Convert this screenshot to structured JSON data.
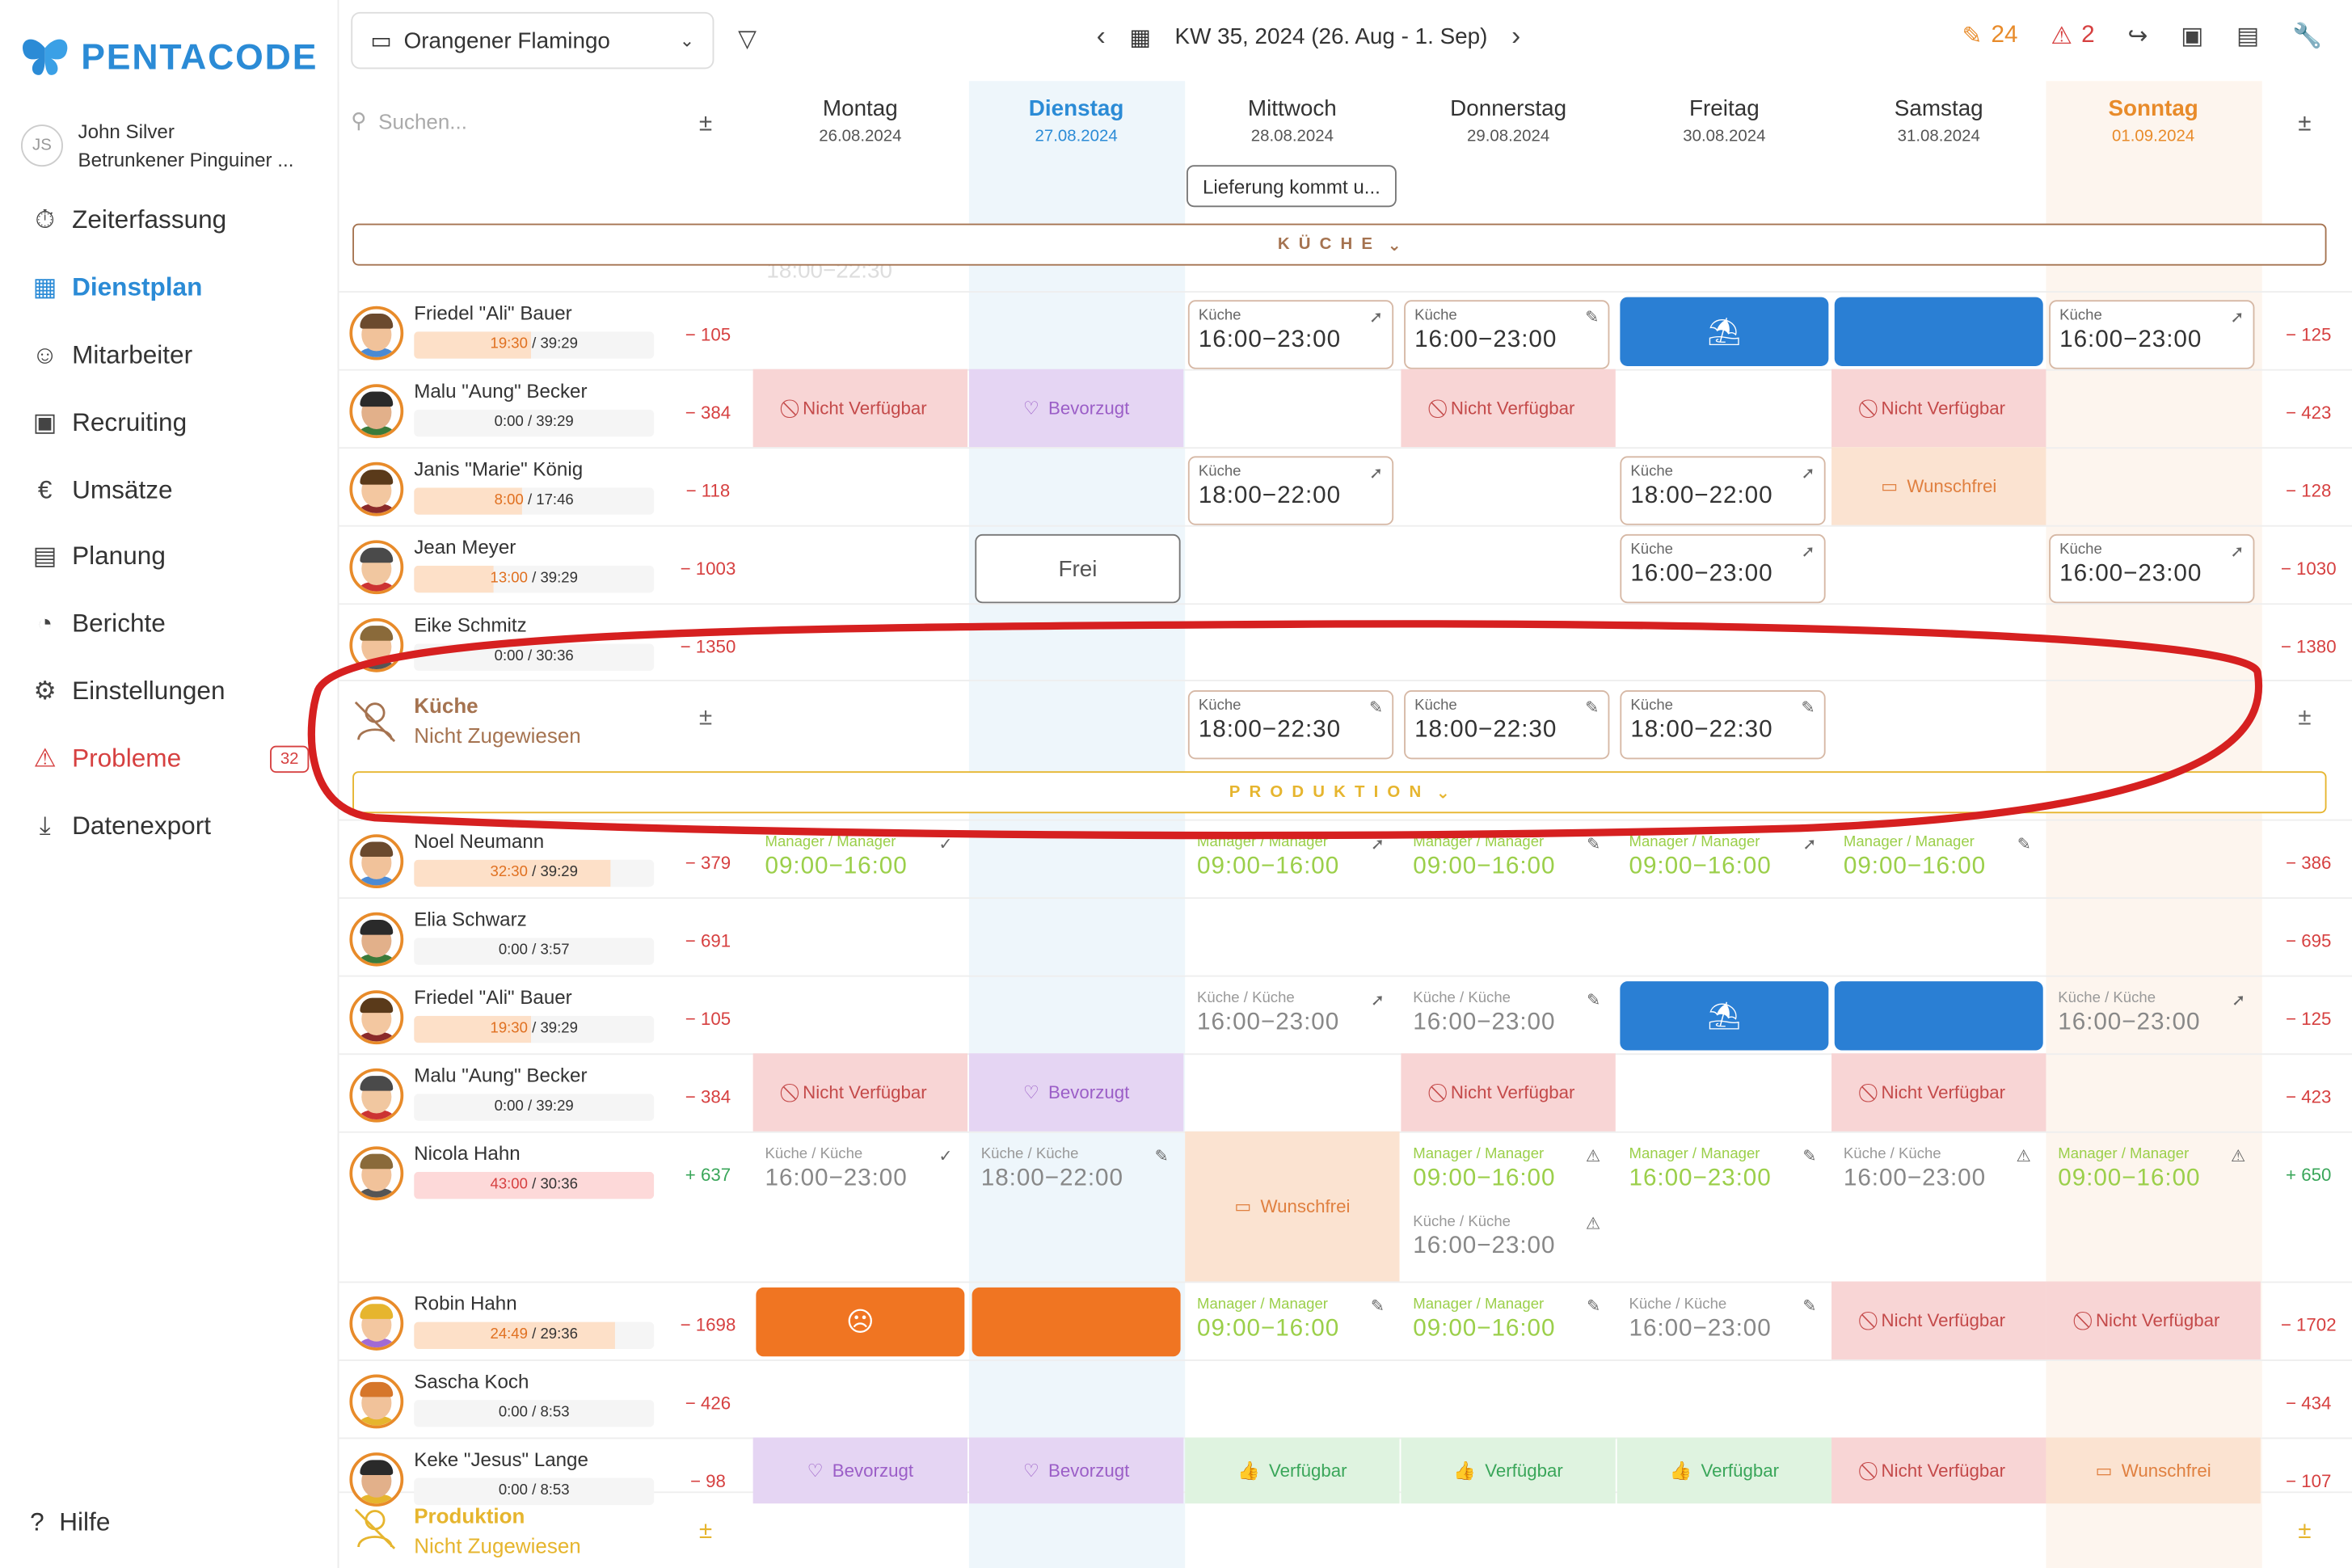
{
  "brand": {
    "name": "PENTACODE"
  },
  "user": {
    "initials": "JS",
    "name": "John Silver",
    "subtitle": "Betrunkener Pinguiner ..."
  },
  "nav": [
    {
      "label": "Zeiterfassung",
      "icon": "stopwatch-icon"
    },
    {
      "label": "Dienstplan",
      "icon": "table-icon",
      "active": true
    },
    {
      "label": "Mitarbeiter",
      "icon": "people-icon"
    },
    {
      "label": "Recruiting",
      "icon": "id-card-icon"
    },
    {
      "label": "Umsätze",
      "icon": "euro-icon"
    },
    {
      "label": "Planung",
      "icon": "calendar-icon"
    },
    {
      "label": "Berichte",
      "icon": "pie-chart-icon"
    },
    {
      "label": "Einstellungen",
      "icon": "gear-icon"
    },
    {
      "label": "Probleme",
      "icon": "warning-icon",
      "badge": "32"
    },
    {
      "label": "Datenexport",
      "icon": "download-icon"
    }
  ],
  "help": "Hilfe",
  "topbar": {
    "team": "Orangener Flamingo",
    "week": "KW 35, 2024 (26. Aug - 1. Sep)",
    "edits": "24",
    "warnings": "2"
  },
  "search_placeholder": "Suchen...",
  "days": [
    {
      "name": "Montag",
      "date": "26.08.2024"
    },
    {
      "name": "Dienstag",
      "date": "27.08.2024",
      "today": true
    },
    {
      "name": "Mittwoch",
      "date": "28.08.2024"
    },
    {
      "name": "Donnerstag",
      "date": "29.08.2024"
    },
    {
      "name": "Freitag",
      "date": "30.08.2024"
    },
    {
      "name": "Samstag",
      "date": "31.08.2024"
    },
    {
      "name": "Sonntag",
      "date": "01.09.2024",
      "sunday": true
    }
  ],
  "note": "Lieferung kommt u...",
  "sections": {
    "kueche": "KÜCHE",
    "produktion": "PRODUKTION"
  },
  "kueche_rows": [
    {
      "name": "Friedel \"Ali\" Bauer",
      "hours": "19:30",
      "target": "39:29",
      "left": "− 105",
      "right": "− 125",
      "fill": 0.49
    },
    {
      "name": "Malu \"Aung\" Becker",
      "hours": "0:00",
      "target": "39:29",
      "left": "− 384",
      "right": "− 423",
      "fill": 0
    },
    {
      "name": "Janis \"Marie\" König",
      "hours": "8:00",
      "target": "17:46",
      "left": "− 118",
      "right": "− 128",
      "fill": 0.45
    },
    {
      "name": "Jean Meyer",
      "hours": "13:00",
      "target": "39:29",
      "left": "− 1003",
      "right": "− 1030",
      "fill": 0.33
    },
    {
      "name": "Eike Schmitz",
      "hours": "0:00",
      "target": "30:36",
      "left": "− 1350",
      "right": "− 1380",
      "fill": 0
    }
  ],
  "unassigned_kueche": {
    "title": "Küche",
    "sub": "Nicht Zugewiesen"
  },
  "prod_rows": [
    {
      "name": "Noel Neumann",
      "hours": "32:30",
      "target": "39:29",
      "left": "− 379",
      "right": "− 386",
      "fill": 0.82
    },
    {
      "name": "Elia Schwarz",
      "hours": "0:00",
      "target": "3:57",
      "left": "− 691",
      "right": "− 695",
      "fill": 0
    },
    {
      "name": "Friedel \"Ali\" Bauer",
      "hours": "19:30",
      "target": "39:29",
      "left": "− 105",
      "right": "− 125",
      "fill": 0.49
    },
    {
      "name": "Malu \"Aung\" Becker",
      "hours": "0:00",
      "target": "39:29",
      "left": "− 384",
      "right": "− 423",
      "fill": 0
    },
    {
      "name": "Nicola Hahn",
      "hours": "43:00",
      "target": "30:36",
      "left": "+ 637",
      "right": "+ 650",
      "fill": 1,
      "over": true
    },
    {
      "name": "Robin Hahn",
      "hours": "24:49",
      "target": "29:36",
      "left": "− 1698",
      "right": "− 1702",
      "fill": 0.84
    },
    {
      "name": "Sascha Koch",
      "hours": "0:00",
      "target": "8:53",
      "left": "− 426",
      "right": "− 434",
      "fill": 0
    },
    {
      "name": "Keke \"Jesus\" Lange",
      "hours": "0:00",
      "target": "8:53",
      "left": "− 98",
      "right": "− 107",
      "fill": 0
    }
  ],
  "unassigned_prod": {
    "title": "Produktion",
    "sub": "Nicht Zugewiesen"
  },
  "labels": {
    "kueche": "Küche",
    "kk": "Küche / Küche",
    "mm": "Manager / Manager",
    "na": "Nicht Verfügbar",
    "bev": "Bevorzugt",
    "verf": "Verfügbar",
    "wf": "Wunschfrei",
    "frei": "Frei",
    "t1623": "16:00−23:00",
    "t1822": "18:00−22:00",
    "t182230": "18:00−22:30",
    "t0916": "09:00−16:00",
    "t1823": "18:00−22:30"
  },
  "colors": {
    "brand": "#2b8bd6",
    "accent_orange": "#e88b2a",
    "danger": "#d64040",
    "kueche": "#a57350",
    "produktion": "#e6b52e",
    "highlight_ellipse": "#d62020"
  }
}
